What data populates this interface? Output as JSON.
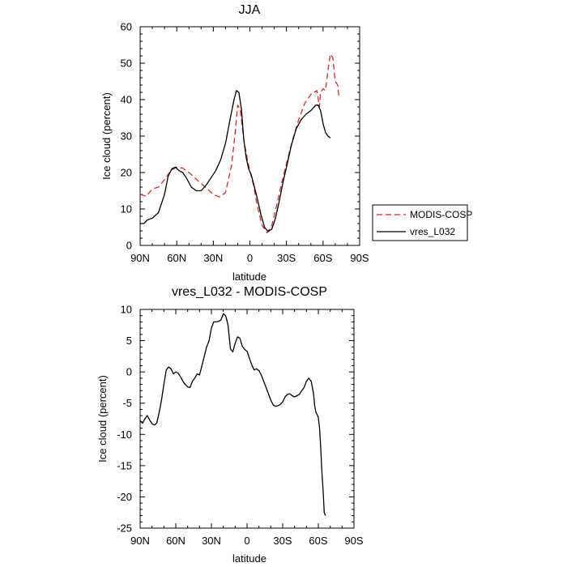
{
  "chart_data": [
    {
      "type": "line",
      "title": "JJA",
      "xlabel": "latitude",
      "ylabel": "Ice cloud (percent)",
      "xlim": [
        90,
        -90
      ],
      "ylim": [
        0,
        60
      ],
      "x_ticks": [
        90,
        60,
        30,
        0,
        -30,
        -60,
        -90
      ],
      "x_tick_labels": [
        "90N",
        "60N",
        "30N",
        "0",
        "30S",
        "60S",
        "90S"
      ],
      "y_ticks": [
        0,
        10,
        20,
        30,
        40,
        50,
        60
      ],
      "y_tick_labels": [
        "0",
        "10",
        "20",
        "30",
        "40",
        "50",
        "60"
      ],
      "legend": {
        "position": "right",
        "entries": [
          "MODIS-COSP",
          "vres_L032"
        ]
      },
      "series": [
        {
          "name": "MODIS-COSP",
          "color": "#e8231e",
          "dash": "dashed",
          "x": [
            90,
            85,
            80,
            75,
            70,
            65,
            60,
            55,
            50,
            45,
            40,
            35,
            30,
            25,
            20,
            15,
            12,
            10,
            8,
            5,
            2,
            0,
            -3,
            -6,
            -10,
            -14,
            -18,
            -22,
            -26,
            -30,
            -35,
            -40,
            -45,
            -50,
            -55,
            -57,
            -58,
            -60,
            -62,
            -64,
            -66,
            -68,
            -70,
            -72,
            -73
          ],
          "y": [
            14,
            13.5,
            15.5,
            16,
            18,
            20.5,
            21.5,
            21.2,
            20,
            18.5,
            17,
            15.5,
            14,
            13.3,
            14.5,
            22,
            31,
            38.5,
            37.5,
            29,
            23.5,
            20.5,
            16.5,
            11,
            5.5,
            3.5,
            5.5,
            11,
            17,
            22.5,
            29,
            34.5,
            39,
            41.5,
            42.5,
            38,
            42,
            43,
            42.5,
            48,
            52.5,
            51.5,
            45,
            44,
            41
          ]
        },
        {
          "name": "vres_L032",
          "color": "#000000",
          "dash": "solid",
          "x": [
            90,
            87,
            84,
            80,
            75,
            70,
            67,
            64,
            61,
            58,
            55,
            52,
            48,
            44,
            40,
            36,
            32,
            28,
            24,
            20,
            16,
            13,
            11,
            9,
            7,
            5,
            3,
            1,
            -1,
            -3,
            -6,
            -9,
            -12,
            -15,
            -18,
            -21,
            -24,
            -27,
            -30,
            -34,
            -38,
            -42,
            -46,
            -50,
            -54,
            -56,
            -58,
            -60,
            -62,
            -64,
            -66
          ],
          "y": [
            6,
            6,
            7,
            7.5,
            9,
            14,
            19,
            21,
            21.5,
            20.5,
            20,
            18.5,
            16,
            15,
            15,
            16.5,
            18.5,
            20.5,
            23.5,
            28,
            35,
            40,
            42.5,
            42,
            37.5,
            29,
            24,
            21,
            19.5,
            17,
            13,
            8.5,
            5,
            3.8,
            4.5,
            7.5,
            12,
            17,
            21.5,
            27.5,
            32,
            34.5,
            36,
            37,
            38.5,
            38.5,
            37,
            33.5,
            31,
            30,
            29.5
          ]
        }
      ]
    },
    {
      "type": "line",
      "title": "vres_L032 - MODIS-COSP",
      "xlabel": "latitude",
      "ylabel": "Ice cloud (percent)",
      "xlim": [
        90,
        -90
      ],
      "ylim": [
        -25,
        10
      ],
      "x_ticks": [
        90,
        60,
        30,
        0,
        -30,
        -60,
        -90
      ],
      "x_tick_labels": [
        "90N",
        "60N",
        "30N",
        "0",
        "30S",
        "60S",
        "90S"
      ],
      "y_ticks": [
        -25,
        -20,
        -15,
        -10,
        -5,
        0,
        5,
        10
      ],
      "y_tick_labels": [
        "-25",
        "-20",
        "-15",
        "-10",
        "-5",
        "0",
        "5",
        "10"
      ],
      "series": [
        {
          "name": "vres_L032 - MODIS-COSP",
          "color": "#000000",
          "dash": "solid",
          "x": [
            90,
            88,
            86,
            84,
            82,
            80,
            78,
            76,
            74,
            72,
            70,
            68,
            66,
            64,
            62,
            60,
            58,
            56,
            54,
            52,
            50,
            48,
            46,
            44,
            42,
            40,
            38,
            36,
            34,
            32,
            30,
            28,
            26,
            24,
            22,
            20,
            18,
            16,
            14,
            12,
            10,
            8,
            6,
            4,
            2,
            0,
            -2,
            -4,
            -6,
            -8,
            -10,
            -12,
            -14,
            -16,
            -18,
            -20,
            -22,
            -24,
            -26,
            -28,
            -30,
            -32,
            -34,
            -36,
            -38,
            -40,
            -42,
            -44,
            -46,
            -48,
            -50,
            -52,
            -54,
            -56,
            -57,
            -58,
            -59,
            -60,
            -61,
            -62,
            -63,
            -64,
            -65,
            -66
          ],
          "y": [
            -7.8,
            -8.2,
            -7.5,
            -7,
            -7.7,
            -8.3,
            -8.5,
            -8.2,
            -6.5,
            -4.5,
            -2,
            0.3,
            0.8,
            0.5,
            -0.3,
            0,
            -0.2,
            -0.8,
            -1.5,
            -2,
            -2.4,
            -2.5,
            -1.5,
            -1,
            -0.3,
            -0.5,
            1,
            2.5,
            4,
            5,
            7,
            8,
            8,
            8.1,
            8.3,
            9.3,
            9,
            7.5,
            3.7,
            3.2,
            4.6,
            5.6,
            5.4,
            4.1,
            3.6,
            3.3,
            2.2,
            1.1,
            0.3,
            0.5,
            0.2,
            -0.5,
            -1.5,
            -2.5,
            -3.5,
            -4.5,
            -5.3,
            -5.5,
            -5.4,
            -5.2,
            -4.8,
            -4,
            -3.6,
            -3.5,
            -3.8,
            -4,
            -3.8,
            -3.6,
            -3,
            -2.5,
            -1.5,
            -1,
            -1.5,
            -3.5,
            -5.5,
            -6.5,
            -6.8,
            -7.3,
            -9,
            -12,
            -16,
            -19,
            -22.5,
            -23
          ]
        }
      ]
    }
  ]
}
